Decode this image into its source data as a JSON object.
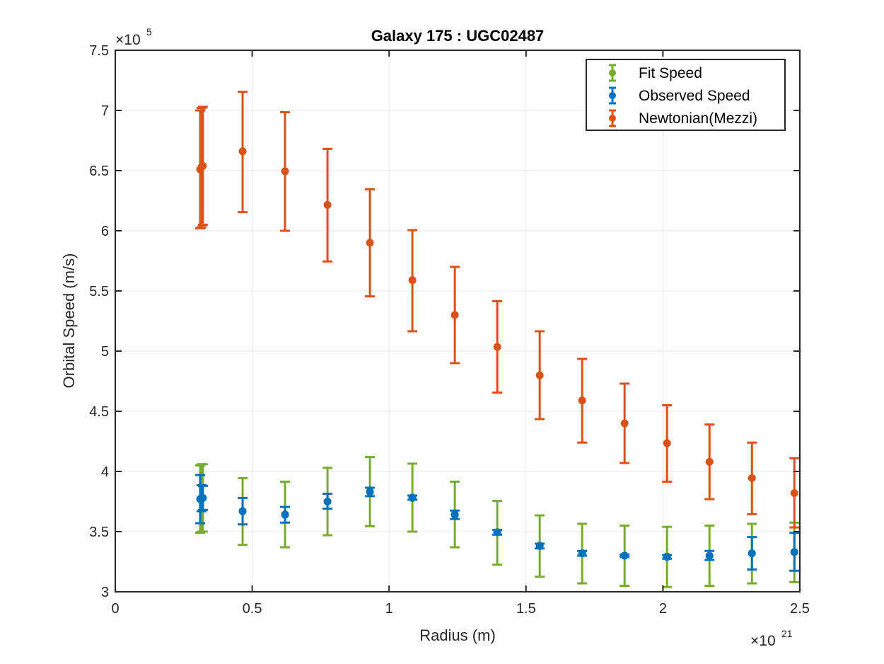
{
  "chart_data": {
    "type": "scatter",
    "title": "Galaxy 175 : UGC02487",
    "xlabel": "Radius (m)",
    "ylabel": "Orbital Speed (m/s)",
    "x_multiplier": {
      "base": "×10",
      "exp": "21"
    },
    "y_multiplier": {
      "base": "×10",
      "exp": "5"
    },
    "xlim": [
      0,
      2.5
    ],
    "ylim": [
      3,
      7.5
    ],
    "x_ticks": [
      0,
      0.5,
      1,
      1.5,
      2,
      2.5
    ],
    "x_tick_labels": [
      "0",
      "0.5",
      "1",
      "1.5",
      "2",
      "2.5"
    ],
    "y_ticks": [
      3,
      3.5,
      4,
      4.5,
      5,
      5.5,
      6,
      6.5,
      7,
      7.5
    ],
    "y_tick_labels": [
      "3",
      "3.5",
      "4",
      "4.5",
      "5",
      "5.5",
      "6",
      "6.5",
      "7",
      "7.5"
    ],
    "grid": true,
    "legend_position": "top-right",
    "series": [
      {
        "name": "Fit Speed",
        "color": "#77AC30",
        "x": [
          0.31,
          0.315,
          0.32,
          0.465,
          0.62,
          0.775,
          0.93,
          1.085,
          1.24,
          1.395,
          1.55,
          1.705,
          1.86,
          2.015,
          2.17,
          2.325,
          2.48
        ],
        "y": [
          3.77,
          3.78,
          3.78,
          3.67,
          3.645,
          3.75,
          3.835,
          3.785,
          3.645,
          3.495,
          3.385,
          3.32,
          3.3,
          3.295,
          3.3,
          3.32,
          3.33
        ],
        "err_low": [
          3.49,
          3.5,
          3.5,
          3.39,
          3.37,
          3.47,
          3.545,
          3.5,
          3.37,
          3.225,
          3.125,
          3.07,
          3.05,
          3.04,
          3.05,
          3.07,
          3.08
        ],
        "err_high": [
          4.05,
          4.06,
          4.06,
          3.945,
          3.915,
          4.03,
          4.12,
          4.065,
          3.915,
          3.755,
          3.635,
          3.565,
          3.55,
          3.54,
          3.55,
          3.565,
          3.575
        ]
      },
      {
        "name": "Observed Speed",
        "color": "#0072BD",
        "x": [
          0.31,
          0.315,
          0.32,
          0.465,
          0.62,
          0.775,
          0.93,
          1.085,
          1.24,
          1.395,
          1.55,
          1.705,
          1.86,
          2.015,
          2.17,
          2.325,
          2.48
        ],
        "y": [
          3.77,
          3.78,
          3.78,
          3.67,
          3.64,
          3.75,
          3.83,
          3.78,
          3.64,
          3.495,
          3.38,
          3.32,
          3.3,
          3.29,
          3.3,
          3.32,
          3.33
        ],
        "err_low": [
          3.57,
          3.67,
          3.68,
          3.56,
          3.575,
          3.69,
          3.795,
          3.765,
          3.605,
          3.475,
          3.36,
          3.3,
          3.29,
          3.275,
          3.265,
          3.185,
          3.175
        ],
        "err_high": [
          3.97,
          3.885,
          3.88,
          3.78,
          3.705,
          3.815,
          3.865,
          3.8,
          3.675,
          3.515,
          3.4,
          3.34,
          3.31,
          3.305,
          3.34,
          3.455,
          3.49
        ]
      },
      {
        "name": "Newtonian(Mezzi)",
        "color": "#D95319",
        "x": [
          0.31,
          0.315,
          0.32,
          0.465,
          0.62,
          0.775,
          0.93,
          1.085,
          1.24,
          1.395,
          1.55,
          1.705,
          1.86,
          2.015,
          2.17,
          2.325,
          2.48
        ],
        "y": [
          6.51,
          6.53,
          6.54,
          6.66,
          6.495,
          6.215,
          5.9,
          5.59,
          5.3,
          5.035,
          4.8,
          4.59,
          4.4,
          4.235,
          4.08,
          3.945,
          3.82
        ],
        "err_low": [
          6.02,
          6.03,
          6.05,
          6.155,
          6.0,
          5.745,
          5.455,
          5.165,
          4.9,
          4.655,
          4.435,
          4.24,
          4.07,
          3.915,
          3.77,
          3.645,
          3.535
        ],
        "err_high": [
          7.0,
          7.02,
          7.03,
          7.155,
          6.985,
          6.68,
          6.345,
          6.005,
          5.7,
          5.415,
          5.165,
          4.935,
          4.73,
          4.55,
          4.39,
          4.24,
          4.11
        ]
      }
    ]
  }
}
